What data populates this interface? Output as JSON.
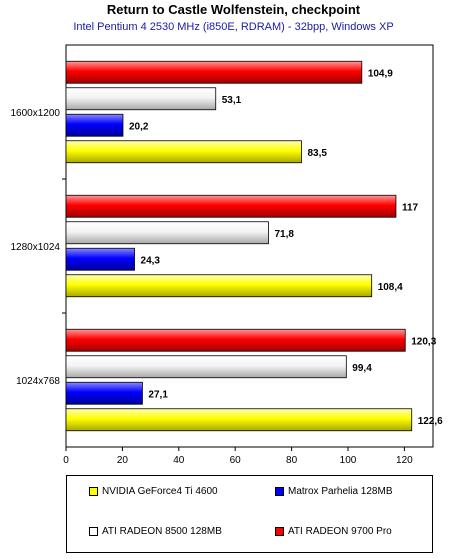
{
  "chart_data": {
    "type": "bar",
    "orientation": "horizontal",
    "title": "Return to Castle Wolfenstein, checkpoint",
    "subtitle": "Intel Pentium 4 2530 MHz (i850E, RDRAM) - 32bpp, Windows XP",
    "categories": [
      "1600x1200",
      "1280x1024",
      "1024x768"
    ],
    "xlim": [
      0,
      130
    ],
    "xticks": [
      0,
      20,
      40,
      60,
      80,
      100,
      120
    ],
    "grid": false,
    "legend_position": "bottom",
    "series": [
      {
        "name": "ATI RADEON 9700 Pro",
        "color": "#ff0000",
        "values": [
          104.9,
          117,
          120.3
        ],
        "labels": [
          "104,9",
          "117",
          "120,3"
        ]
      },
      {
        "name": "ATI RADEON 8500 128MB",
        "color": "#ffffff",
        "values": [
          53.1,
          71.8,
          99.4
        ],
        "labels": [
          "53,1",
          "71,8",
          "99,4"
        ]
      },
      {
        "name": "Matrox Parhelia 128MB",
        "color": "#0000ff",
        "values": [
          20.2,
          24.3,
          27.1
        ],
        "labels": [
          "20,2",
          "24,3",
          "27,1"
        ]
      },
      {
        "name": "NVIDIA GeForce4 Ti 4600",
        "color": "#ffff00",
        "values": [
          83.5,
          108.4,
          122.6
        ],
        "labels": [
          "83,5",
          "108,4",
          "122,6"
        ]
      }
    ],
    "legend_order": [
      3,
      2,
      1,
      0
    ]
  }
}
